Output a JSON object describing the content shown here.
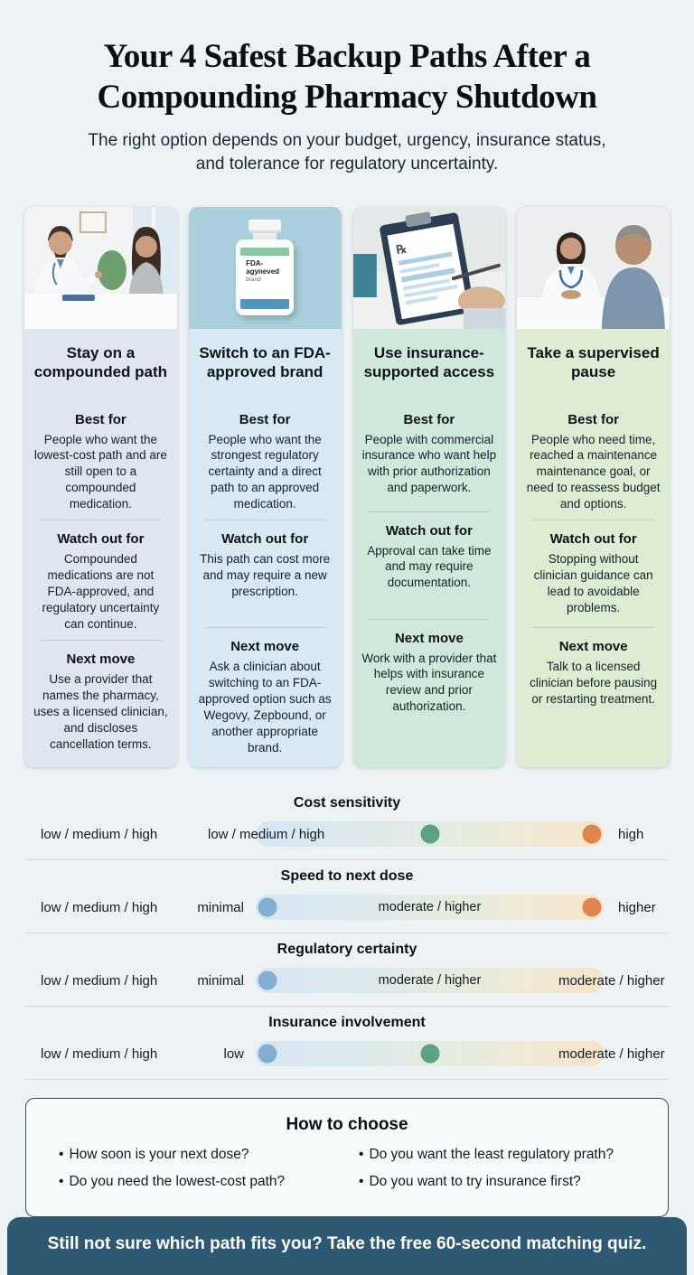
{
  "page": {
    "title": "Your 4 Safest Backup Paths After a Compounding Pharmacy Shutdown",
    "subtitle": "The right option depends on your budget, urgency, insurance status, and tolerance for regulatory uncertainty."
  },
  "cards": [
    {
      "title": "Stay on a compounded path",
      "photo": "doctor-consulting-patient",
      "best_for_label": "Best for",
      "best_for": "People who want the lowest-cost path and are still open to a compounded medication.",
      "watch_out_label": "Watch out for",
      "watch_out": "Compounded medications are not FDA-approved, and regulatory uncertainty can continue.",
      "next_move_label": "Next move",
      "next_move": "Use a provider that names the pharmacy, uses a licensed clinician, and discloses cancellation terms."
    },
    {
      "title": "Switch to an FDA-approved brand",
      "photo": "fda-approved-pill-bottle",
      "bottle_label_line1": "FDA-",
      "bottle_label_line2": "agyneved",
      "bottle_label_line3": "brand",
      "best_for_label": "Best for",
      "best_for": "People who want the strongest regulatory certainty and a direct path to an approved medication.",
      "watch_out_label": "Watch out for",
      "watch_out": "This path can cost more and may require a new prescription.",
      "next_move_label": "Next move",
      "next_move": "Ask a clinician about switching to an FDA-approved option such as Wegovy, Zepbound, or another appropriate brand."
    },
    {
      "title": "Use insurance-supported access",
      "photo": "clipboard-prior-authorization-form",
      "rx_symbol": "℞",
      "best_for_label": "Best for",
      "best_for": "People with commercial insurance who want help with prior authorization and paperwork.",
      "watch_out_label": "Watch out for",
      "watch_out": "Approval can take time and may require documentation.",
      "next_move_label": "Next move",
      "next_move": "Work with a provider that helps with insurance review and prior authorization."
    },
    {
      "title": "Take a supervised pause",
      "photo": "clinician-patient-discussion",
      "best_for_label": "Best for",
      "best_for": "People who need time, reached a maintenance maintenance goal, or need to reassess budget and options.",
      "watch_out_label": "Watch out for",
      "watch_out": "Stopping without clinician guidance can lead to avoidable problems.",
      "next_move_label": "Next move",
      "next_move": "Talk to a licensed clinician before pausing or restarting treatment."
    }
  ],
  "comparison": {
    "rows": [
      {
        "title": "Cost sensitivity",
        "left_label": "low / medium / high",
        "pre_label": "low / medium / high",
        "track_text": "",
        "right_label": "high",
        "dots": [
          {
            "color": "green",
            "pos": 50
          },
          {
            "color": "orange",
            "pos": 96.5
          }
        ]
      },
      {
        "title": "Speed to next dose",
        "left_label": "low / medium / high",
        "pre_label": "minimal",
        "track_text": "moderate / higher",
        "right_label": "higher",
        "dots": [
          {
            "color": "blue",
            "pos": 3.5
          },
          {
            "color": "orange",
            "pos": 96.5
          }
        ]
      },
      {
        "title": "Regulatory certainty",
        "left_label": "low / medium / high",
        "pre_label": "minimal",
        "track_text": "moderate / higher",
        "right_label": "moderate / higher",
        "dots": [
          {
            "color": "blue",
            "pos": 3.5
          }
        ]
      },
      {
        "title": "Insurance involvement",
        "left_label": "low / medium / high",
        "pre_label": "low",
        "track_text": "",
        "right_label": "moderate / higher",
        "dots": [
          {
            "color": "blue",
            "pos": 3.5
          },
          {
            "color": "green",
            "pos": 50
          }
        ]
      }
    ]
  },
  "how_to_choose": {
    "title": "How to choose",
    "bullet_glyph": "•",
    "bullets_left": [
      "How soon is your next dose?",
      "Do you need the lowest-cost path?"
    ],
    "bullets_right": [
      "Do you want the least regulatory prath?",
      "Do you want to try insurance first?"
    ]
  },
  "footer": {
    "cta": "Still not sure which path fits you? Take the free 60-second matching quiz."
  },
  "colors": {
    "page_bg": "#edf3f5",
    "card1_bg": "#dfe6f2",
    "card2_bg": "#d8e9f3",
    "card3_bg": "#d0e7db",
    "card4_bg": "#dfecd4",
    "dot_blue": "#84aecf",
    "dot_green": "#5ba184",
    "dot_orange": "#df854e",
    "footer_bg": "#2d5a72"
  }
}
